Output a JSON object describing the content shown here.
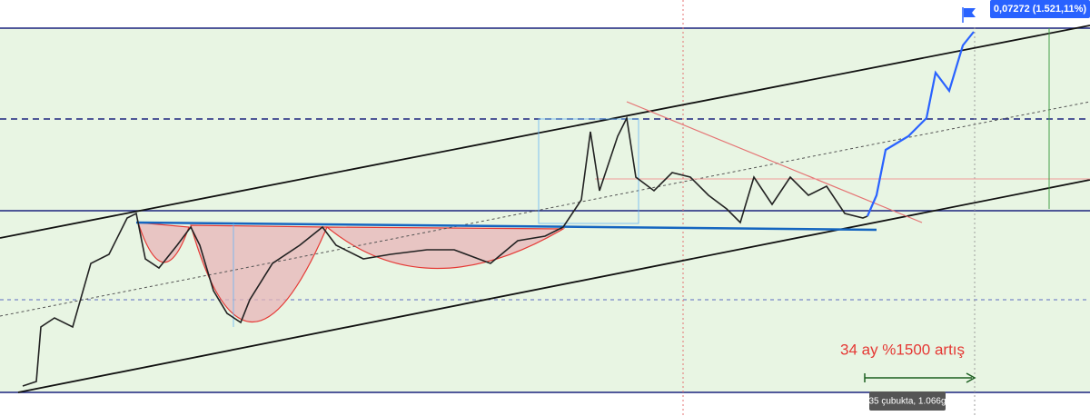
{
  "header": {
    "price_label": "0,07272 (1.521,11%)"
  },
  "annotations": {
    "note": "34 ay %1500 artış",
    "measure": "35 çubukta, 1.066g"
  }
}
